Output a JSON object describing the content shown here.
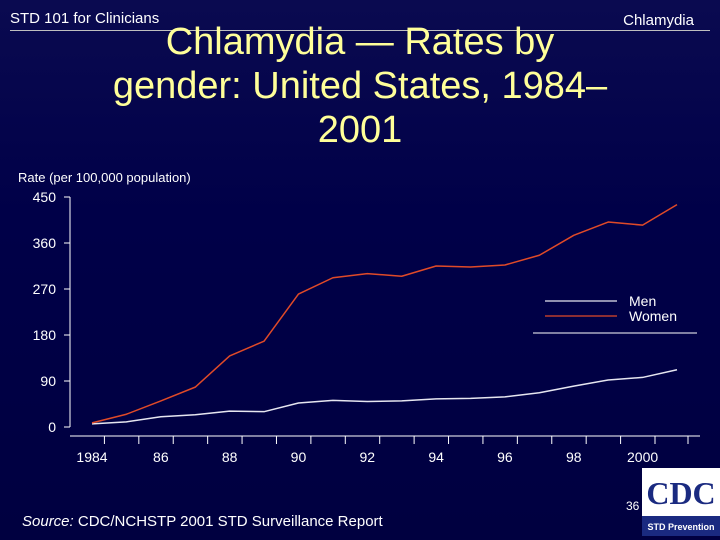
{
  "header": {
    "left": "STD 101 for Clinicians",
    "right": "Chlamydia"
  },
  "title_lines": [
    "Chlamydia — Rates by",
    "gender: United States, 1984–",
    "2001"
  ],
  "source": {
    "label": "Source:",
    "text": " CDC/NCHSTP 2001 STD Surveillance Report"
  },
  "page_number": "36",
  "logo": {
    "big": "CDC",
    "small": "STD Prevention"
  },
  "colors": {
    "background": "#000048",
    "title": "#ffff99",
    "axis": "#ffffff",
    "men": "#e6e6f0",
    "women": "#e04a28"
  },
  "chart_data": {
    "type": "line",
    "ylabel": "Rate (per 100,000 population)",
    "ylim": [
      0,
      450
    ],
    "yticks": [
      0,
      90,
      180,
      270,
      360,
      450
    ],
    "xlim": [
      1984,
      2001
    ],
    "xticks": [
      1984,
      1986,
      1988,
      1990,
      1992,
      1994,
      1996,
      1998,
      2000
    ],
    "xtick_labels": [
      "1984",
      "86",
      "88",
      "90",
      "92",
      "94",
      "96",
      "98",
      "2000"
    ],
    "legend_position": "right",
    "x": [
      1984,
      1985,
      1986,
      1987,
      1988,
      1989,
      1990,
      1991,
      1992,
      1993,
      1994,
      1995,
      1996,
      1997,
      1998,
      1999,
      2000,
      2001
    ],
    "series": [
      {
        "name": "Men",
        "color": "#e6e6f0",
        "values": [
          6,
          10,
          20,
          24,
          31,
          30,
          47,
          52,
          50,
          51,
          55,
          56,
          59,
          67,
          80,
          92,
          97,
          112
        ]
      },
      {
        "name": "Women",
        "color": "#e04a28",
        "values": [
          8,
          25,
          51,
          78,
          139,
          168,
          260,
          292,
          300,
          295,
          315,
          313,
          317,
          336,
          375,
          401,
          395,
          435
        ]
      }
    ]
  }
}
